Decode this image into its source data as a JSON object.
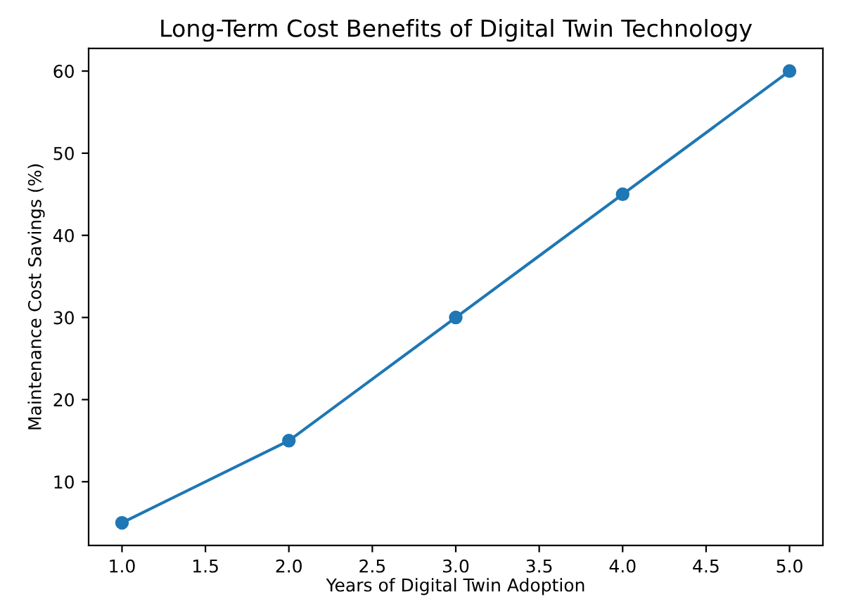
{
  "chart_data": {
    "type": "line",
    "title": "Long-Term Cost Benefits of Digital Twin Technology",
    "xlabel": "Years of Digital Twin Adoption",
    "ylabel": "Maintenance Cost Savings (%)",
    "x": [
      1,
      2,
      3,
      4,
      5
    ],
    "series": [
      {
        "color": "#1f77b4",
        "values": [
          5,
          15,
          30,
          45,
          60
        ]
      }
    ],
    "xlim": [
      0.8,
      5.2
    ],
    "xticks": [
      {
        "value": 1,
        "label": "1.0"
      },
      {
        "value": 1.5,
        "label": "1.5"
      },
      {
        "value": 2,
        "label": "2.0"
      },
      {
        "value": 2.5,
        "label": "2.5"
      },
      {
        "value": 3,
        "label": "3.0"
      },
      {
        "value": 3.5,
        "label": "3.5"
      },
      {
        "value": 4,
        "label": "4.0"
      },
      {
        "value": 4.5,
        "label": "4.5"
      },
      {
        "value": 5,
        "label": "5.0"
      }
    ],
    "ylim": [
      2.25,
      62.75
    ],
    "yticks": [
      10,
      20,
      30,
      40,
      50,
      60
    ],
    "marker": "circle",
    "line_style": "solid",
    "grid": false
  }
}
